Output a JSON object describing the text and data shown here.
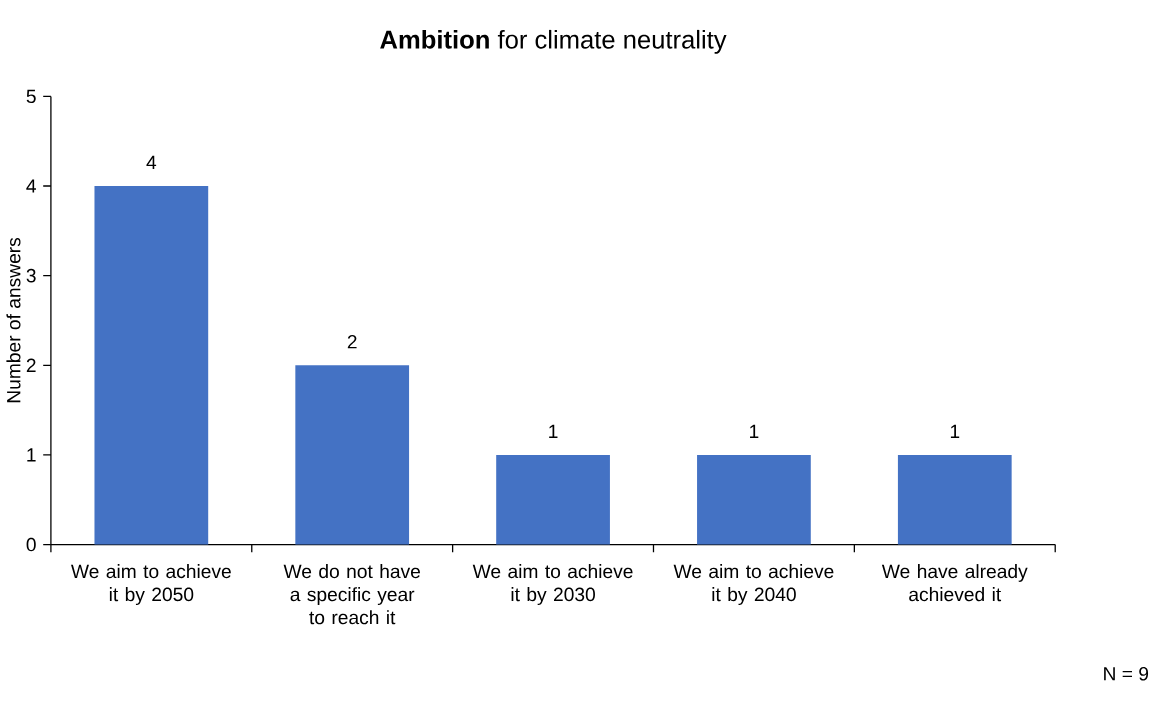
{
  "chart_data": {
    "type": "bar",
    "title": "**Ambition** for climate neutrality",
    "ylabel": "Number of answers",
    "categories": [
      "We aim to achieve it by 2050",
      "We do not have a specific year to reach it",
      "We aim to achieve it by 2030",
      "We aim to achieve it by 2040",
      "We have already achieved it"
    ],
    "values": [
      4,
      2,
      1,
      1,
      1
    ],
    "color": "#4472c4",
    "ylim": [
      0,
      5
    ],
    "yticks": [
      0,
      1,
      2,
      3,
      4,
      5
    ],
    "data_labels": true,
    "annotations": [
      "N = 9"
    ]
  }
}
